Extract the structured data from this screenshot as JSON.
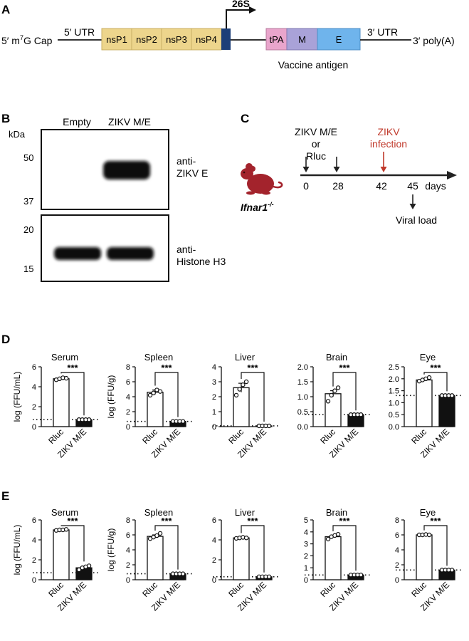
{
  "panels": {
    "a": "A",
    "b": "B",
    "c": "C",
    "d": "D",
    "e": "E"
  },
  "construct": {
    "cap": "5′ m",
    "cap_sup": "7",
    "cap_tail": "G Cap",
    "utr5": "5′ UTR",
    "nsp": [
      "nsP1",
      "nsP2",
      "nsP3",
      "nsP4"
    ],
    "promoter": "26S",
    "antigen": [
      "tPA",
      "M",
      "E"
    ],
    "utr3": "3′ UTR",
    "polya": "3′ poly(A)",
    "antigen_caption": "Vaccine antigen",
    "colors": {
      "nsp": "#EDD58C",
      "promoter": "#1D3F78",
      "tpa": "#E9A5CC",
      "m": "#A9A2D8",
      "e": "#6FB4EC"
    }
  },
  "blot": {
    "lanes": [
      "Empty",
      "ZIKV M/E"
    ],
    "unit": "kDa",
    "top_markers": [
      "50",
      "37"
    ],
    "bottom_markers": [
      "20",
      "15"
    ],
    "top_label": [
      "anti-",
      "ZIKV E"
    ],
    "bottom_label": [
      "anti-",
      "Histone H3"
    ]
  },
  "timeline": {
    "vaccines": [
      "ZIKV M/E",
      "or",
      "Rluc"
    ],
    "infection": [
      "ZIKV",
      "infection"
    ],
    "days": [
      "0",
      "28",
      "42",
      "45"
    ],
    "unit": "days",
    "readout": "Viral load",
    "mouse": "Ifnar1",
    "mouse_sup": "-/-",
    "colors": {
      "mouse": "#A3232C",
      "infection": "#C0392B"
    }
  },
  "chart_data": [
    {
      "panel": "D",
      "type": "bar",
      "title": "Serum",
      "ylabel": "log (FFU/mL)",
      "categories": [
        "Rluc",
        "ZIKV M/E"
      ],
      "values": [
        4.8,
        0.7
      ],
      "points": [
        [
          4.7,
          4.8,
          4.9,
          4.85
        ],
        [
          0.7,
          0.7,
          0.7,
          0.7
        ]
      ],
      "errors": [
        0.1,
        0
      ],
      "ylim": [
        0,
        6
      ],
      "yticks": [
        "0",
        "2",
        "4",
        "6"
      ],
      "limit": 0.7,
      "significance": "***"
    },
    {
      "panel": "D",
      "type": "bar",
      "title": "Spleen",
      "ylabel": "log (FFU/g)",
      "categories": [
        "Rluc",
        "ZIKV M/E"
      ],
      "values": [
        4.6,
        0.7
      ],
      "points": [
        [
          4.2,
          4.5,
          4.9,
          4.7
        ],
        [
          0.7,
          0.7,
          0.7,
          0.7
        ]
      ],
      "errors": [
        0.3,
        0
      ],
      "ylim": [
        0,
        8
      ],
      "yticks": [
        "0",
        "2",
        "4",
        "6",
        "8"
      ],
      "limit": 0.7,
      "significance": "***"
    },
    {
      "panel": "D",
      "type": "bar",
      "title": "Liver",
      "ylabel": "",
      "categories": [
        "Rluc",
        "ZIKV M/E"
      ],
      "values": [
        2.6,
        0.05
      ],
      "points": [
        [
          2.1,
          2.5,
          2.8,
          3.0
        ],
        [
          0.05,
          0.05,
          0.05,
          0.05
        ]
      ],
      "errors": [
        0.3,
        0
      ],
      "ylim": [
        0,
        4
      ],
      "yticks": [
        "0",
        "1",
        "2",
        "3",
        "4"
      ],
      "limit": 0.05,
      "significance": "***"
    },
    {
      "panel": "D",
      "type": "bar",
      "title": "Brain",
      "ylabel": "",
      "categories": [
        "Rluc",
        "ZIKV M/E"
      ],
      "values": [
        1.1,
        0.4
      ],
      "points": [
        [
          0.85,
          1.05,
          1.2,
          1.3
        ],
        [
          0.4,
          0.4,
          0.4,
          0.4
        ]
      ],
      "errors": [
        0.1,
        0
      ],
      "ylim": [
        0,
        2
      ],
      "yticks": [
        "0.0",
        "0.5",
        "1.0",
        "1.5",
        "2.0"
      ],
      "limit": 0.4,
      "significance": "***"
    },
    {
      "panel": "D",
      "type": "bar",
      "title": "Eye",
      "ylabel": "",
      "categories": [
        "Rluc",
        "ZIKV M/E"
      ],
      "values": [
        1.95,
        1.3
      ],
      "points": [
        [
          1.9,
          1.95,
          2.0,
          2.05
        ],
        [
          1.3,
          1.3,
          1.3,
          1.3
        ]
      ],
      "errors": [
        0.05,
        0
      ],
      "ylim": [
        0,
        2.5
      ],
      "yticks": [
        "0.0",
        "0.5",
        "1.0",
        "1.5",
        "2.0",
        "2.5"
      ],
      "limit": 1.3,
      "significance": "***"
    },
    {
      "panel": "E",
      "type": "bar",
      "title": "Serum",
      "ylabel": "log (FFU/mL)",
      "categories": [
        "Rluc",
        "ZIKV M/E"
      ],
      "values": [
        5.0,
        1.2
      ],
      "points": [
        [
          4.95,
          5.0,
          5.0,
          5.05
        ],
        [
          1.0,
          1.2,
          1.3,
          1.4
        ]
      ],
      "errors": [
        0.03,
        0.1
      ],
      "ylim": [
        0,
        6
      ],
      "yticks": [
        "0",
        "2",
        "4",
        "6"
      ],
      "limit": 0.7,
      "significance": "***"
    },
    {
      "panel": "E",
      "type": "bar",
      "title": "Spleen",
      "ylabel": "log (FFU/g)",
      "categories": [
        "Rluc",
        "ZIKV M/E"
      ],
      "values": [
        5.8,
        0.8
      ],
      "points": [
        [
          5.5,
          5.7,
          5.9,
          6.2
        ],
        [
          0.8,
          0.8,
          0.8,
          0.8
        ]
      ],
      "errors": [
        0.2,
        0
      ],
      "ylim": [
        0,
        8
      ],
      "yticks": [
        "0",
        "2",
        "4",
        "6",
        "8"
      ],
      "limit": 0.8,
      "significance": "***"
    },
    {
      "panel": "E",
      "type": "bar",
      "title": "Liver",
      "ylabel": "",
      "categories": [
        "Rluc",
        "ZIKV M/E"
      ],
      "values": [
        4.2,
        0.3
      ],
      "points": [
        [
          4.15,
          4.2,
          4.25,
          4.2
        ],
        [
          0.3,
          0.3,
          0.3,
          0.3
        ]
      ],
      "errors": [
        0.05,
        0
      ],
      "ylim": [
        0,
        6
      ],
      "yticks": [
        "0",
        "2",
        "4",
        "6"
      ],
      "limit": 0.3,
      "significance": "***"
    },
    {
      "panel": "E",
      "type": "bar",
      "title": "Brain",
      "ylabel": "",
      "categories": [
        "Rluc",
        "ZIKV M/E"
      ],
      "values": [
        3.6,
        0.4
      ],
      "points": [
        [
          3.4,
          3.6,
          3.7,
          3.8
        ],
        [
          0.4,
          0.4,
          0.4,
          0.4
        ]
      ],
      "errors": [
        0.1,
        0
      ],
      "ylim": [
        0,
        5
      ],
      "yticks": [
        "0",
        "1",
        "2",
        "3",
        "4",
        "5"
      ],
      "limit": 0.4,
      "significance": "***"
    },
    {
      "panel": "E",
      "type": "bar",
      "title": "Eye",
      "ylabel": "",
      "categories": [
        "Rluc",
        "ZIKV M/E"
      ],
      "values": [
        6.0,
        1.3
      ],
      "points": [
        [
          6.0,
          6.0,
          6.05,
          6.0
        ],
        [
          1.3,
          1.3,
          1.3,
          1.3
        ]
      ],
      "errors": [
        0.03,
        0
      ],
      "ylim": [
        0,
        8
      ],
      "yticks": [
        "0",
        "2",
        "4",
        "6",
        "8"
      ],
      "limit": 1.3,
      "significance": "***"
    }
  ]
}
